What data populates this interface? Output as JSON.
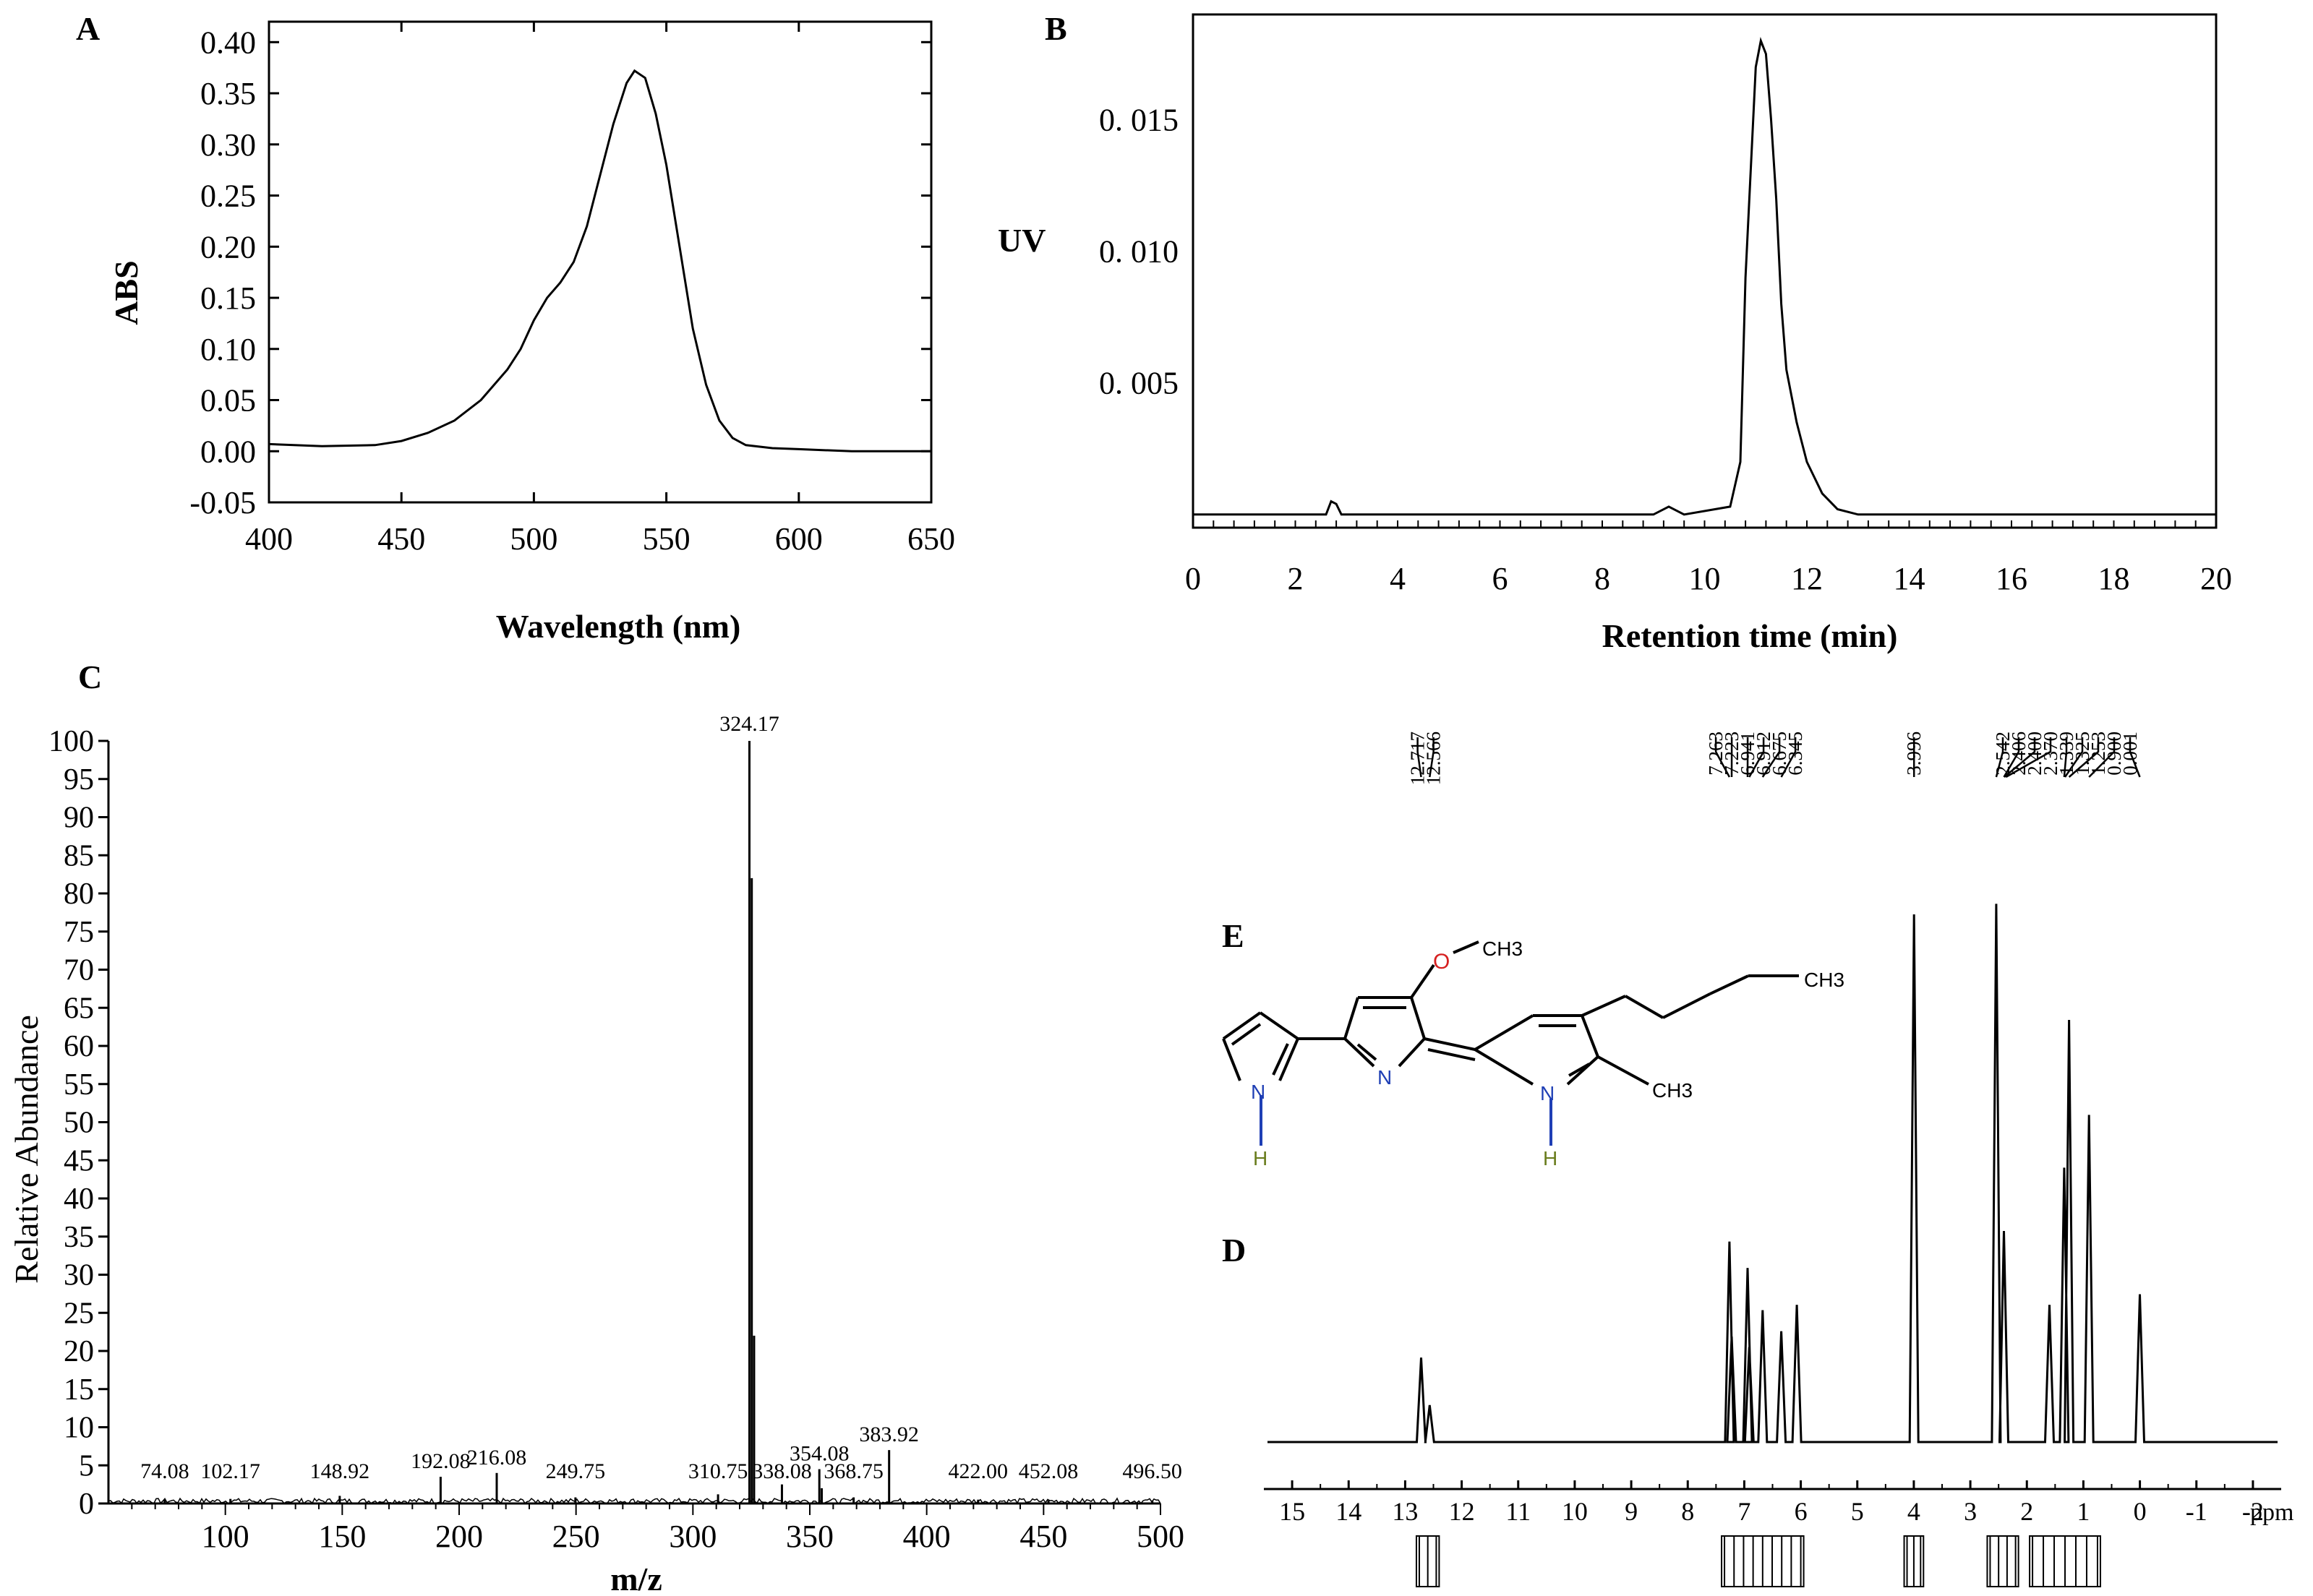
{
  "panels": {
    "A": "A",
    "B": "B",
    "C": "C",
    "D": "D",
    "E": "E"
  },
  "colors": {
    "line": "#000000",
    "nitrogen": "#1f3fb5",
    "oxygen": "#d62020",
    "hydrogen": "#6a7d1e"
  },
  "chart_data": [
    {
      "id": "A",
      "type": "line",
      "title": "",
      "xlabel": "Wavelength (nm)",
      "ylabel": "ABS",
      "xlim": [
        400,
        650
      ],
      "ylim": [
        -0.05,
        0.42
      ],
      "xticks": [
        400,
        450,
        500,
        550,
        600,
        650
      ],
      "xtick_labels": [
        "400",
        "450",
        "500",
        "550",
        "600",
        "650"
      ],
      "yticks": [
        -0.05,
        0.0,
        0.05,
        0.1,
        0.15,
        0.2,
        0.25,
        0.3,
        0.35,
        0.4
      ],
      "ytick_labels": [
        "-0.05",
        "0.00",
        "0.05",
        "0.10",
        "0.15",
        "0.20",
        "0.25",
        "0.30",
        "0.35",
        "0.40"
      ],
      "grid": false,
      "x": [
        400,
        420,
        440,
        450,
        460,
        470,
        480,
        490,
        495,
        500,
        505,
        510,
        515,
        520,
        525,
        530,
        535,
        538,
        542,
        546,
        550,
        555,
        560,
        565,
        570,
        575,
        580,
        590,
        600,
        620,
        650
      ],
      "y": [
        0.007,
        0.005,
        0.006,
        0.01,
        0.018,
        0.03,
        0.05,
        0.08,
        0.1,
        0.128,
        0.15,
        0.165,
        0.185,
        0.22,
        0.27,
        0.32,
        0.36,
        0.372,
        0.365,
        0.33,
        0.28,
        0.2,
        0.12,
        0.065,
        0.03,
        0.013,
        0.006,
        0.003,
        0.002,
        0.0,
        0.0
      ]
    },
    {
      "id": "B",
      "type": "line",
      "title": "",
      "xlabel": "Retention time (min)",
      "ylabel": "UV",
      "xlim": [
        0,
        20
      ],
      "ylim": [
        -0.0005,
        0.019
      ],
      "xticks": [
        0,
        2,
        4,
        6,
        8,
        10,
        12,
        14,
        16,
        18,
        20
      ],
      "xtick_labels": [
        "0",
        "2",
        "4",
        "6",
        "8",
        "10",
        "12",
        "14",
        "16",
        "18",
        "20"
      ],
      "yticks": [
        0.005,
        0.01,
        0.015
      ],
      "ytick_labels": [
        "0. 005",
        "0. 010",
        "0. 015"
      ],
      "grid": false,
      "x": [
        0,
        2.6,
        2.7,
        2.8,
        2.9,
        3.0,
        9.0,
        9.3,
        9.6,
        10.5,
        10.7,
        10.8,
        10.9,
        11.0,
        11.1,
        11.2,
        11.3,
        11.4,
        11.5,
        11.6,
        11.8,
        12.0,
        12.3,
        12.6,
        13.0,
        20
      ],
      "y": [
        0.0,
        0.0,
        0.0005,
        0.0004,
        0.0,
        0.0,
        0.0,
        0.0003,
        0.0,
        0.0003,
        0.002,
        0.009,
        0.013,
        0.017,
        0.018,
        0.0175,
        0.015,
        0.012,
        0.008,
        0.0055,
        0.0035,
        0.002,
        0.0008,
        0.0002,
        0.0,
        0.0
      ]
    },
    {
      "id": "C",
      "type": "bar",
      "title": "",
      "xlabel": "m/z",
      "ylabel": "Relative Abundance",
      "xlim": [
        50,
        500
      ],
      "ylim": [
        0,
        100
      ],
      "xticks": [
        100,
        150,
        200,
        250,
        300,
        350,
        400,
        450,
        500
      ],
      "xtick_labels": [
        "100",
        "150",
        "200",
        "250",
        "300",
        "350",
        "400",
        "450",
        "500"
      ],
      "yticks": [
        0,
        5,
        10,
        15,
        20,
        25,
        30,
        35,
        40,
        45,
        50,
        55,
        60,
        65,
        70,
        75,
        80,
        85,
        90,
        95,
        100
      ],
      "ytick_labels": [
        "0",
        "5",
        "10",
        "15",
        "20",
        "25",
        "30",
        "35",
        "40",
        "45",
        "50",
        "55",
        "60",
        "65",
        "70",
        "75",
        "80",
        "85",
        "90",
        "95",
        "100"
      ],
      "grid": false,
      "peaks": [
        {
          "mz": 74.08,
          "abundance": 0.5,
          "label": "74.08"
        },
        {
          "mz": 102.17,
          "abundance": 0.6,
          "label": "102.17"
        },
        {
          "mz": 148.92,
          "abundance": 1.0,
          "label": "148.92"
        },
        {
          "mz": 192.08,
          "abundance": 3.5,
          "label": "192.08"
        },
        {
          "mz": 216.08,
          "abundance": 4.0,
          "label": "216.08"
        },
        {
          "mz": 249.75,
          "abundance": 0.8,
          "label": "249.75"
        },
        {
          "mz": 310.75,
          "abundance": 1.2,
          "label": "310.75"
        },
        {
          "mz": 324.17,
          "abundance": 100,
          "label": "324.17"
        },
        {
          "mz": 325.17,
          "abundance": 82,
          "label": ""
        },
        {
          "mz": 326.17,
          "abundance": 22,
          "label": ""
        },
        {
          "mz": 338.08,
          "abundance": 2.5,
          "label": "338.08"
        },
        {
          "mz": 354.08,
          "abundance": 4.5,
          "label": "354.08"
        },
        {
          "mz": 355.1,
          "abundance": 2.0,
          "label": ""
        },
        {
          "mz": 368.75,
          "abundance": 0.8,
          "label": "368.75"
        },
        {
          "mz": 383.92,
          "abundance": 7.0,
          "label": "383.92"
        },
        {
          "mz": 422.0,
          "abundance": 0.5,
          "label": "422.00"
        },
        {
          "mz": 452.08,
          "abundance": 0.4,
          "label": "452.08"
        },
        {
          "mz": 496.5,
          "abundance": 0.4,
          "label": "496.50"
        }
      ]
    },
    {
      "id": "D",
      "type": "line",
      "title": "",
      "xlabel": "ppm",
      "ylabel": "",
      "xlim": [
        15.5,
        -2.5
      ],
      "xticks": [
        15,
        14,
        13,
        12,
        11,
        10,
        9,
        8,
        7,
        6,
        5,
        4,
        3,
        2,
        1,
        0,
        -1,
        -2
      ],
      "xtick_labels": [
        "15",
        "14",
        "13",
        "12",
        "11",
        "10",
        "9",
        "8",
        "7",
        "6",
        "5",
        "4",
        "3",
        "2",
        "1",
        "0",
        "-1",
        "-2"
      ],
      "ylim": [
        0,
        100
      ],
      "peak_labels": [
        [
          "12.717",
          "12.566"
        ],
        [
          "7.263",
          "7.223",
          "6.941",
          "6.912",
          "6.675",
          "6.345"
        ],
        [
          "3.996"
        ],
        [
          "2.542",
          "2.406",
          "2.400",
          "2.370",
          "1.339",
          "1.325",
          "1.253",
          "0.900",
          "0.001"
        ]
      ],
      "peaks": [
        {
          "ppm": 12.717,
          "height": 16
        },
        {
          "ppm": 12.566,
          "height": 7
        },
        {
          "ppm": 7.263,
          "height": 38
        },
        {
          "ppm": 7.223,
          "height": 20
        },
        {
          "ppm": 6.941,
          "height": 33
        },
        {
          "ppm": 6.912,
          "height": 18
        },
        {
          "ppm": 6.675,
          "height": 25
        },
        {
          "ppm": 6.345,
          "height": 21
        },
        {
          "ppm": 6.07,
          "height": 26
        },
        {
          "ppm": 3.996,
          "height": 100
        },
        {
          "ppm": 2.542,
          "height": 102
        },
        {
          "ppm": 2.406,
          "height": 40
        },
        {
          "ppm": 1.6,
          "height": 26
        },
        {
          "ppm": 1.339,
          "height": 52
        },
        {
          "ppm": 1.253,
          "height": 80
        },
        {
          "ppm": 0.9,
          "height": 62
        },
        {
          "ppm": 0.001,
          "height": 28
        }
      ]
    }
  ],
  "structure": {
    "atoms": {
      "o": "O",
      "ch3_top": "CH3",
      "ch3_chain": "CH3",
      "ch3_methyl": "CH3",
      "n1": "N",
      "n2": "N",
      "n3": "N",
      "h1": "H",
      "h3": "H"
    }
  }
}
